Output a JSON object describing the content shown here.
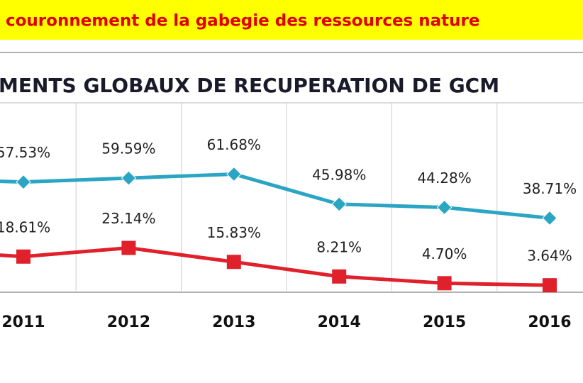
{
  "chart_data": {
    "type": "line",
    "banner": "couronnement de la gabegie des ressources nature",
    "title": "MENTS GLOBAUX DE RECUPERATION  DE GCM",
    "categories": [
      "2011",
      "2012",
      "2013",
      "2014",
      "2015",
      "2016"
    ],
    "series": [
      {
        "color": "#2aa5c4",
        "values": [
          57.53,
          59.59,
          61.68,
          45.98,
          44.28,
          38.71
        ],
        "value_labels": [
          "57.53%",
          "59.59%",
          "61.68%",
          "45.98%",
          "44.28%",
          "38.71%"
        ]
      },
      {
        "color": "#e0202a",
        "values": [
          18.61,
          23.14,
          15.83,
          8.21,
          4.7,
          3.64
        ],
        "value_labels": [
          "18.61%",
          "23.14%",
          "15.83%",
          "8.21%",
          "4.70%",
          "3.64%"
        ]
      }
    ],
    "ylim": [
      0,
      100
    ]
  }
}
